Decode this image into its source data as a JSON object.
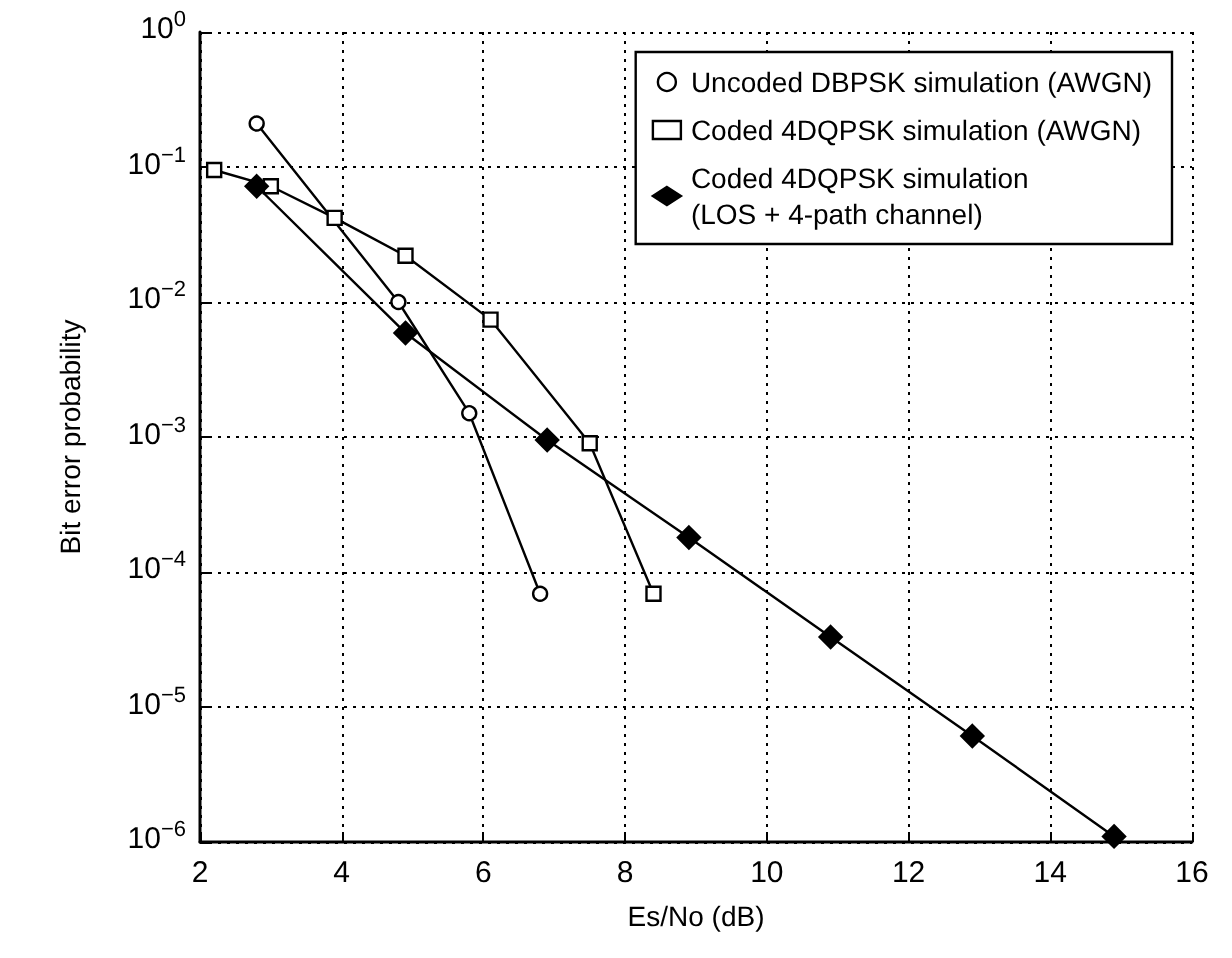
{
  "chart_data": {
    "type": "line",
    "xlabel": "Es/No (dB)",
    "ylabel": "Bit error probability",
    "xlim": [
      2,
      16
    ],
    "xticks": [
      2,
      4,
      6,
      8,
      10,
      12,
      14,
      16
    ],
    "log": "y",
    "ylim": [
      1e-06,
      1
    ],
    "yticks": [
      {
        "value": 1e-06,
        "label": "10$^{−6}$"
      },
      {
        "value": 1e-05,
        "label": "10$^{−5}$"
      },
      {
        "value": 0.0001,
        "label": "10$^{−4}$"
      },
      {
        "value": 0.001,
        "label": "10$^{−3}$"
      },
      {
        "value": 0.01,
        "label": "10$^{−2}$"
      },
      {
        "value": 0.1,
        "label": "10$^{−1}$"
      },
      {
        "value": 1,
        "label": "10$^{0}$"
      }
    ],
    "grid": true,
    "legend": "top right",
    "line_style": "solid",
    "series": [
      {
        "name": "Uncoded DBPSK simulation (AWGN)",
        "color": "#000000",
        "marker": "circle",
        "x": [
          2.8,
          4.8,
          5.8,
          6.8
        ],
        "values": [
          0.21,
          0.01,
          0.0015,
          6.9e-05
        ]
      },
      {
        "name": "Coded 4DQPSK simulation (AWGN)",
        "color": "#000000",
        "marker": "square",
        "x": [
          2.2,
          3,
          3.9,
          4.9,
          6.1,
          7.5,
          8.4
        ],
        "values": [
          0.095,
          0.072,
          0.042,
          0.022,
          0.0074,
          0.0009,
          6.9e-05
        ]
      },
      {
        "name": "Coded 4DQPSK simulation\n(LOS + 4-path channel)",
        "color": "#000000",
        "marker": "diamond",
        "x": [
          2.8,
          4.9,
          6.9,
          8.9,
          10.9,
          12.9,
          14.9
        ],
        "values": [
          0.072,
          0.0059,
          0.00095,
          0.00018,
          3.3e-05,
          6.1e-06,
          1.1e-06
        ]
      }
    ]
  }
}
